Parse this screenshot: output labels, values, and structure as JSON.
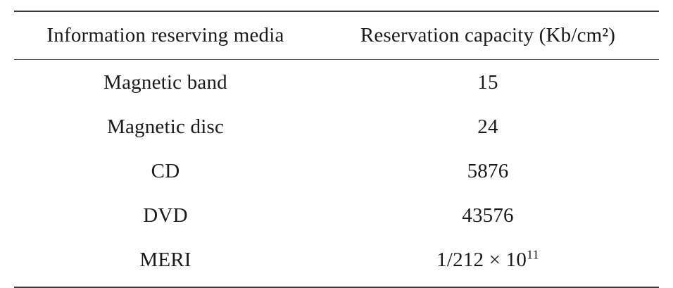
{
  "table": {
    "headers": {
      "media": "Information reserving media",
      "capacity": "Reservation capacity (Kb/cm²)"
    },
    "rows": [
      {
        "media": "Magnetic band",
        "capacity": "15"
      },
      {
        "media": "Magnetic disc",
        "capacity": "24"
      },
      {
        "media": "CD",
        "capacity": "5876"
      },
      {
        "media": "DVD",
        "capacity": "43576"
      },
      {
        "media": "MERI",
        "capacity_base": "1/212 × 10",
        "capacity_exp": "11"
      }
    ]
  }
}
